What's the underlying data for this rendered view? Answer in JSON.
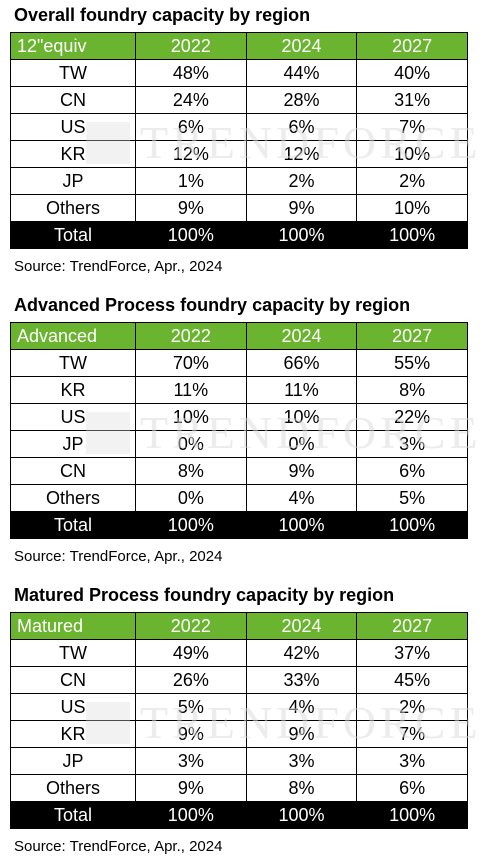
{
  "tables": [
    {
      "title": "Overall foundry capacity by region",
      "header": [
        "12\"equiv",
        "2022",
        "2024",
        "2027"
      ],
      "rows": [
        [
          "TW",
          "48%",
          "44%",
          "40%"
        ],
        [
          "CN",
          "24%",
          "28%",
          "31%"
        ],
        [
          "US",
          "6%",
          "6%",
          "7%"
        ],
        [
          "KR",
          "12%",
          "12%",
          "10%"
        ],
        [
          "JP",
          "1%",
          "2%",
          "2%"
        ],
        [
          "Others",
          "9%",
          "9%",
          "10%"
        ]
      ],
      "total": [
        "Total",
        "100%",
        "100%",
        "100%"
      ],
      "source": "Source: TrendForce, Apr., 2024"
    },
    {
      "title": "Advanced Process foundry capacity by region",
      "header": [
        "Advanced",
        "2022",
        "2024",
        "2027"
      ],
      "rows": [
        [
          "TW",
          "70%",
          "66%",
          "55%"
        ],
        [
          "KR",
          "11%",
          "11%",
          "8%"
        ],
        [
          "US",
          "10%",
          "10%",
          "22%"
        ],
        [
          "JP",
          "0%",
          "0%",
          "3%"
        ],
        [
          "CN",
          "8%",
          "9%",
          "6%"
        ],
        [
          "Others",
          "0%",
          "4%",
          "5%"
        ]
      ],
      "total": [
        "Total",
        "100%",
        "100%",
        "100%"
      ],
      "source": "Source: TrendForce, Apr., 2024"
    },
    {
      "title": "Matured Process foundry capacity by region",
      "header": [
        "Matured",
        "2022",
        "2024",
        "2027"
      ],
      "rows": [
        [
          "TW",
          "49%",
          "42%",
          "37%"
        ],
        [
          "CN",
          "26%",
          "33%",
          "45%"
        ],
        [
          "US",
          "5%",
          "4%",
          "2%"
        ],
        [
          "KR",
          "9%",
          "9%",
          "7%"
        ],
        [
          "JP",
          "3%",
          "3%",
          "3%"
        ],
        [
          "Others",
          "9%",
          "8%",
          "6%"
        ]
      ],
      "total": [
        "Total",
        "100%",
        "100%",
        "100%"
      ],
      "source": "Source: TrendForce, Apr., 2024"
    }
  ],
  "colors": {
    "header_bg": "#6ab42f",
    "header_text": "#ffffff",
    "total_bg": "#000000",
    "total_text": "#ffffff",
    "watermark": "#d9d9d9"
  },
  "watermark": "TRENDFORCE",
  "chart_data": [
    {
      "type": "table",
      "title": "Overall foundry capacity by region",
      "columns": [
        "12\"equiv",
        "2022",
        "2024",
        "2027"
      ],
      "categories": [
        "TW",
        "CN",
        "US",
        "KR",
        "JP",
        "Others"
      ],
      "series": [
        {
          "name": "2022",
          "values": [
            48,
            24,
            6,
            12,
            1,
            9
          ]
        },
        {
          "name": "2024",
          "values": [
            44,
            28,
            6,
            12,
            2,
            9
          ]
        },
        {
          "name": "2027",
          "values": [
            40,
            31,
            7,
            10,
            2,
            10
          ]
        }
      ],
      "totals": [
        100,
        100,
        100
      ]
    },
    {
      "type": "table",
      "title": "Advanced Process foundry capacity by region",
      "columns": [
        "Advanced",
        "2022",
        "2024",
        "2027"
      ],
      "categories": [
        "TW",
        "KR",
        "US",
        "JP",
        "CN",
        "Others"
      ],
      "series": [
        {
          "name": "2022",
          "values": [
            70,
            11,
            10,
            0,
            8,
            0
          ]
        },
        {
          "name": "2024",
          "values": [
            66,
            11,
            10,
            0,
            9,
            4
          ]
        },
        {
          "name": "2027",
          "values": [
            55,
            8,
            22,
            3,
            6,
            5
          ]
        }
      ],
      "totals": [
        100,
        100,
        100
      ]
    },
    {
      "type": "table",
      "title": "Matured Process foundry capacity by region",
      "columns": [
        "Matured",
        "2022",
        "2024",
        "2027"
      ],
      "categories": [
        "TW",
        "CN",
        "US",
        "KR",
        "JP",
        "Others"
      ],
      "series": [
        {
          "name": "2022",
          "values": [
            49,
            26,
            5,
            9,
            3,
            9
          ]
        },
        {
          "name": "2024",
          "values": [
            42,
            33,
            4,
            9,
            3,
            8
          ]
        },
        {
          "name": "2027",
          "values": [
            37,
            45,
            2,
            7,
            3,
            6
          ]
        }
      ],
      "totals": [
        100,
        100,
        100
      ]
    }
  ]
}
